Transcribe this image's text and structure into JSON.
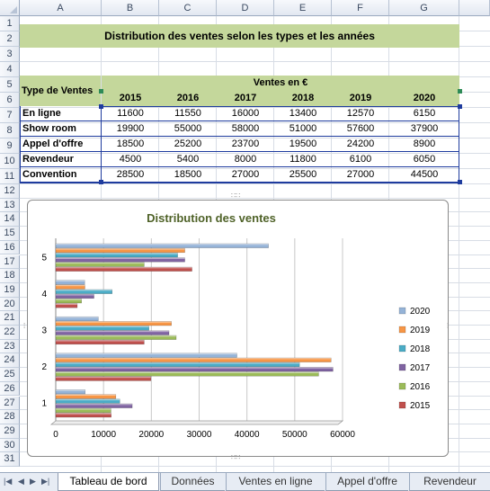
{
  "columns": [
    "A",
    "B",
    "C",
    "D",
    "E",
    "F",
    "G"
  ],
  "rows": [
    "1",
    "2",
    "3",
    "4",
    "5",
    "6",
    "7",
    "8",
    "9",
    "10",
    "11",
    "12",
    "13",
    "14",
    "15",
    "16",
    "17",
    "18",
    "19",
    "20",
    "21",
    "22",
    "23",
    "24",
    "25",
    "26",
    "27",
    "28",
    "29",
    "30",
    "31"
  ],
  "title": "Distribution des ventes selon les types et les années",
  "table": {
    "type_header": "Type de Ventes",
    "sales_header": "Ventes en €",
    "years": [
      "2015",
      "2016",
      "2017",
      "2018",
      "2019",
      "2020"
    ],
    "rows": [
      {
        "label": "En ligne",
        "values": [
          "11600",
          "11550",
          "16000",
          "13400",
          "12570",
          "6150"
        ]
      },
      {
        "label": "Show room",
        "values": [
          "19900",
          "55000",
          "58000",
          "51000",
          "57600",
          "37900"
        ]
      },
      {
        "label": "Appel d'offre",
        "values": [
          "18500",
          "25200",
          "23700",
          "19500",
          "24200",
          "8900"
        ]
      },
      {
        "label": "Revendeur",
        "values": [
          "4500",
          "5400",
          "8000",
          "11800",
          "6100",
          "6050"
        ]
      },
      {
        "label": "Convention",
        "values": [
          "28500",
          "18500",
          "27000",
          "25500",
          "27000",
          "44500"
        ]
      }
    ]
  },
  "chart_data": {
    "type": "bar",
    "orientation": "horizontal",
    "title": "Distribution des ventes",
    "categories": [
      "1",
      "2",
      "3",
      "4",
      "5"
    ],
    "xlim": [
      0,
      60000
    ],
    "xticks": [
      "0",
      "10000",
      "20000",
      "30000",
      "40000",
      "50000",
      "60000"
    ],
    "grid": true,
    "legend_position": "right",
    "series": [
      {
        "name": "2015",
        "color": "#c0504d",
        "values": [
          11600,
          19900,
          18500,
          4500,
          28500
        ]
      },
      {
        "name": "2016",
        "color": "#9bbb59",
        "values": [
          11550,
          55000,
          25200,
          5400,
          18500
        ]
      },
      {
        "name": "2017",
        "color": "#8064a2",
        "values": [
          16000,
          58000,
          23700,
          8000,
          27000
        ]
      },
      {
        "name": "2018",
        "color": "#4bacc6",
        "values": [
          13400,
          51000,
          19500,
          11800,
          25500
        ]
      },
      {
        "name": "2019",
        "color": "#f79646",
        "values": [
          12570,
          57600,
          24200,
          6100,
          27000
        ]
      },
      {
        "name": "2020",
        "color": "#95b3d7",
        "values": [
          6150,
          37900,
          8900,
          6050,
          44500
        ]
      }
    ]
  },
  "tabs": [
    {
      "label": "Tableau de bord",
      "active": true
    },
    {
      "label": "Données",
      "active": false
    },
    {
      "label": "Ventes en ligne",
      "active": false
    },
    {
      "label": "Appel d'offre",
      "active": false
    },
    {
      "label": "Revendeur",
      "active": false
    }
  ],
  "colors": {
    "header_green": "#c4d79b",
    "selection": "#1f3c9e",
    "handle": "#2e8b57"
  }
}
